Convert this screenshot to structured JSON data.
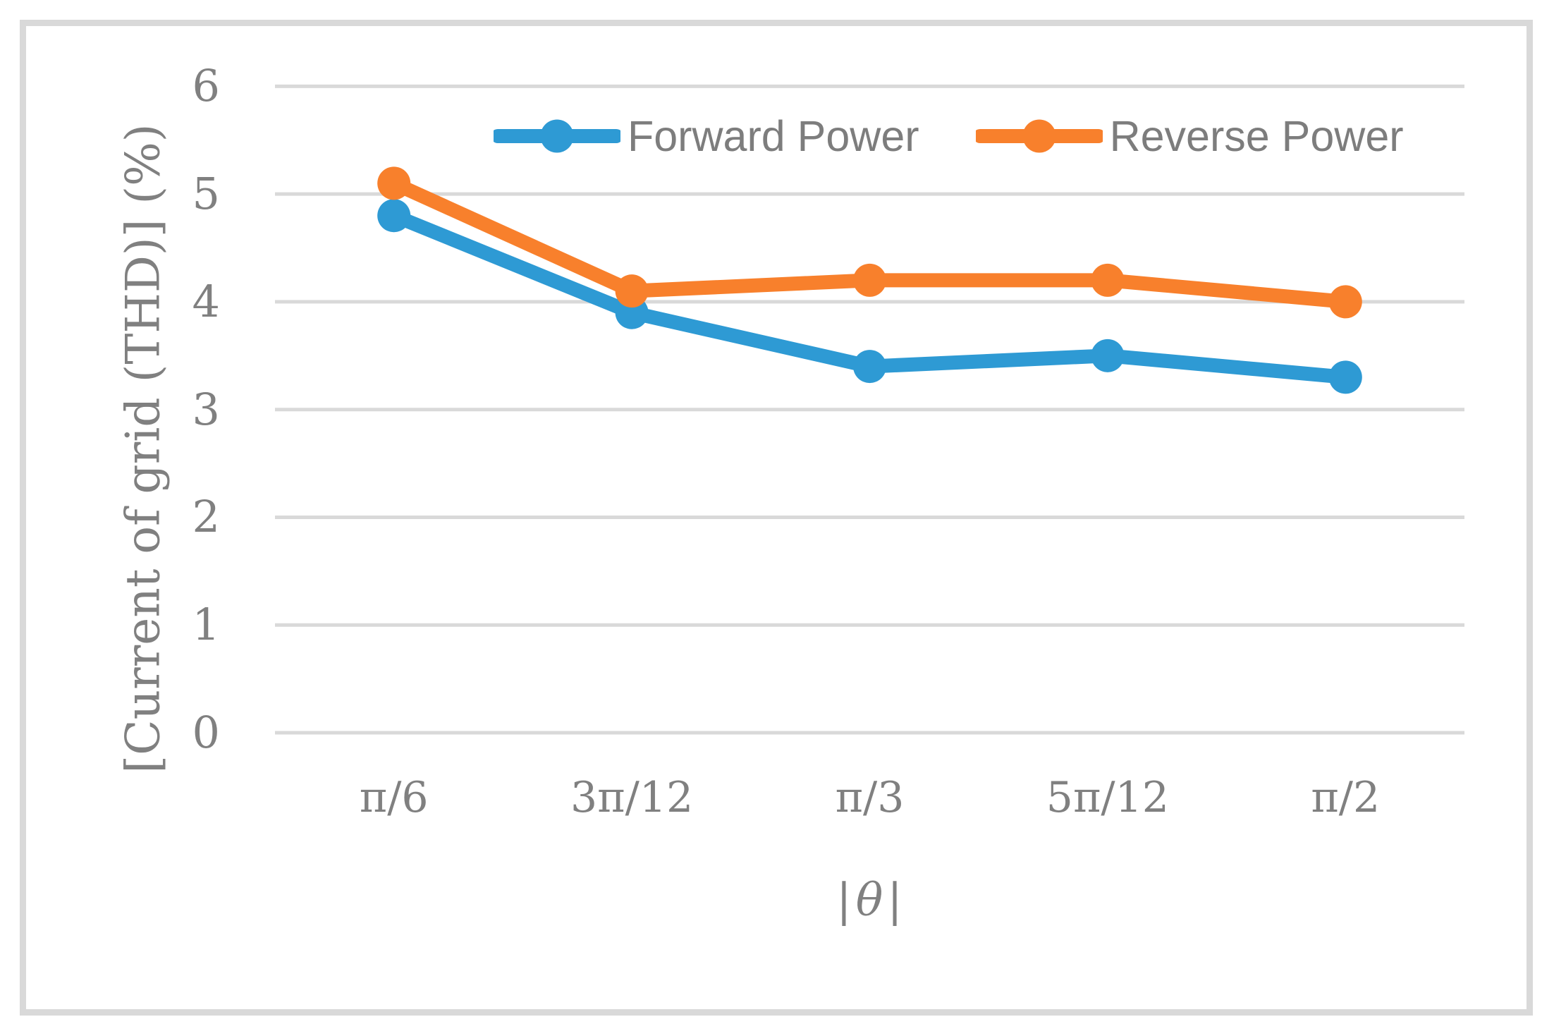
{
  "chart_data": {
    "type": "line",
    "title": "",
    "categories": [
      "π/6",
      "3π/12",
      "π/3",
      "5π/12",
      "π/2"
    ],
    "series": [
      {
        "name": "Forward Power",
        "color": "#2E9AD4",
        "values": [
          4.8,
          3.9,
          3.4,
          3.5,
          3.3
        ]
      },
      {
        "name": "Reverse Power",
        "color": "#F8802C",
        "values": [
          5.1,
          4.1,
          4.2,
          4.2,
          4.0
        ]
      }
    ],
    "xlabel": "|θ|",
    "xlabel_parts": {
      "left_bar": "|",
      "theta": "θ",
      "right_bar": "|"
    },
    "ylabel": "[Current of grid (THD)] (%)",
    "ylim": [
      0,
      6
    ],
    "yticks": [
      "0",
      "1",
      "2",
      "3",
      "4",
      "5",
      "6"
    ],
    "grid": "horizontal-only",
    "legend_position": "top-inside"
  },
  "style": {
    "gridline_color": "#D9D9D9",
    "border_color": "#D9D9D9",
    "axis_text_color": "#808080",
    "legend_text_color": "#7D7D7D",
    "background": "#FFFFFF"
  }
}
